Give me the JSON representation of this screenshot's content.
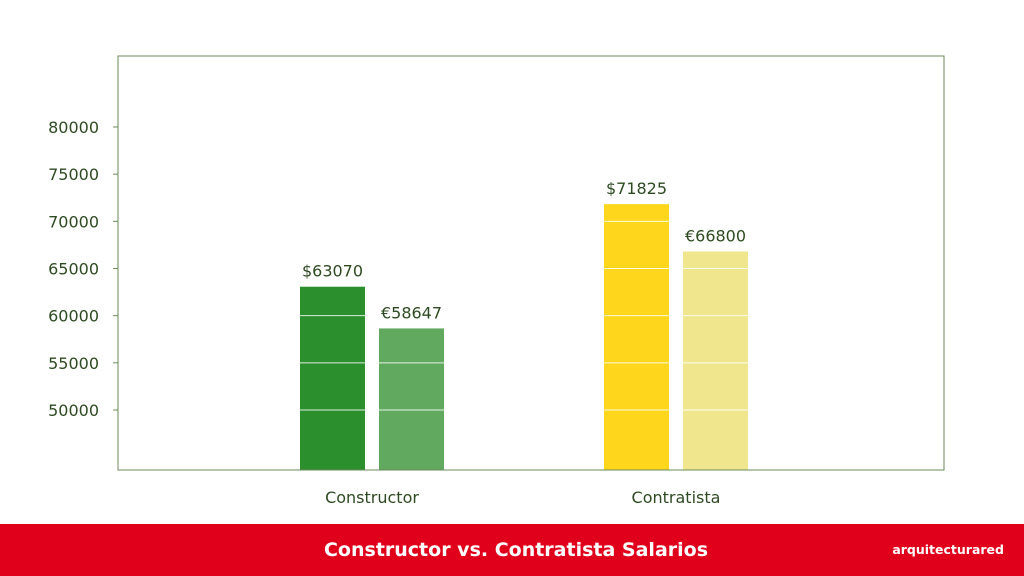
{
  "chart_data": {
    "type": "bar",
    "title": "Constructor vs. Contratista Salarios",
    "xlabel": "",
    "ylabel": "",
    "categories": [
      "Constructor",
      "Contratista"
    ],
    "series": [
      {
        "values": [
          63070,
          71825
        ],
        "labels": [
          "$63070",
          "$71825"
        ],
        "colors": [
          "#2b8f2d",
          "#fed71d"
        ]
      },
      {
        "values": [
          58647,
          66800
        ],
        "labels": [
          "€58647",
          "€66800"
        ],
        "colors": [
          "#61a95f",
          "#f0e68d"
        ]
      }
    ],
    "yticks": [
      50000,
      55000,
      60000,
      65000,
      70000,
      75000,
      80000
    ],
    "ytick_labels": [
      "50000",
      "55000",
      "60000",
      "65000",
      "70000",
      "75000",
      "80000"
    ],
    "grid": true,
    "grid_color": "#ffffff",
    "axis_color": "#6b8a5a",
    "text_color": "#2e4a22"
  },
  "footer": {
    "brand": "arquitecturared",
    "background": "#e0001b"
  }
}
